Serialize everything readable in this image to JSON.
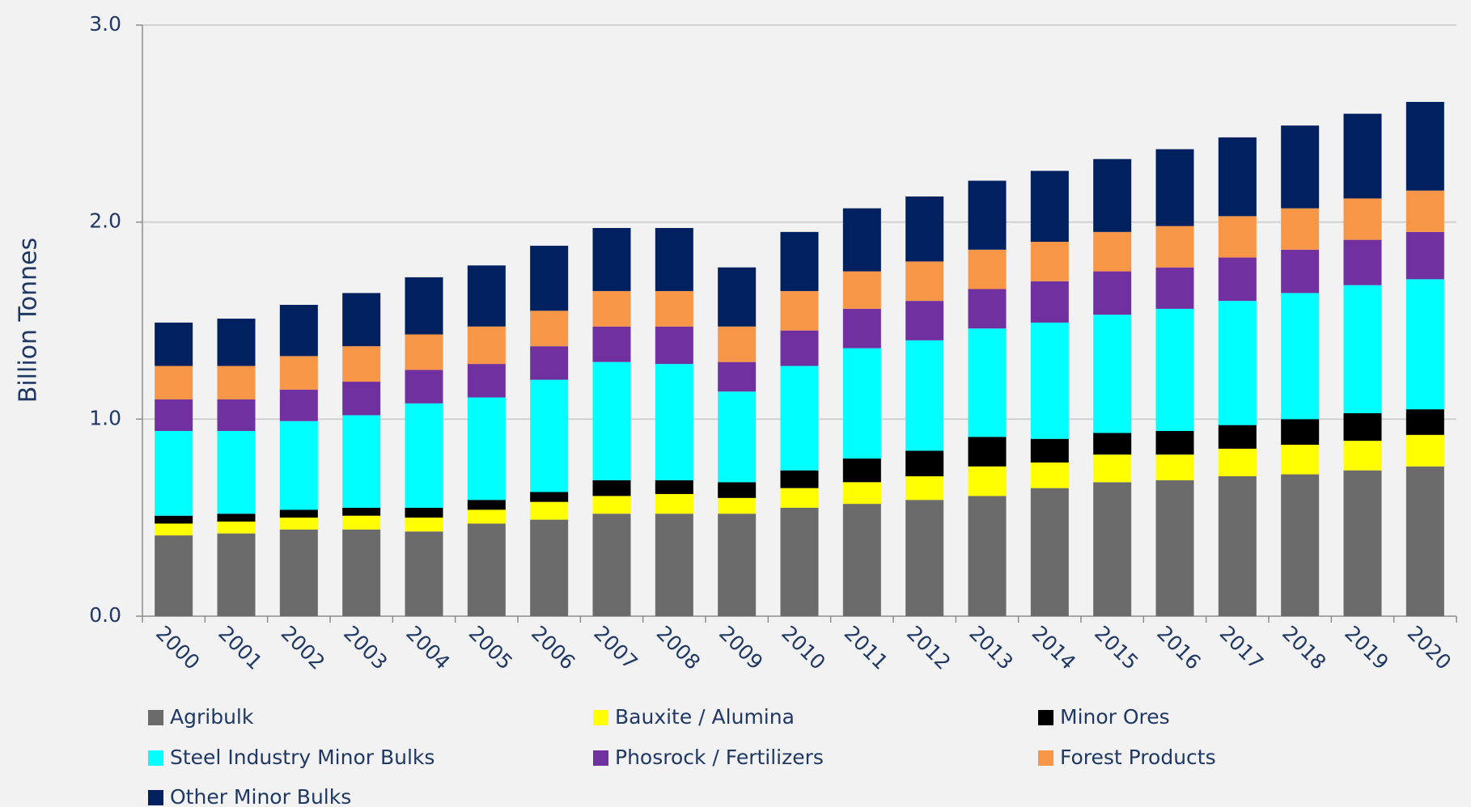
{
  "chart_data": {
    "type": "stacked_bar",
    "y_label": "Billion Tonnes",
    "categories": [
      "2000",
      "2001",
      "2002",
      "2003",
      "2004",
      "2005",
      "2006",
      "2007",
      "2008",
      "2009",
      "2010",
      "2011",
      "2012",
      "2013",
      "2014",
      "2015",
      "2016",
      "2017",
      "2018",
      "2019",
      "2020"
    ],
    "series": [
      {
        "name": "Agribulk",
        "color": "#6b6b6b",
        "values": [
          0.41,
          0.42,
          0.44,
          0.44,
          0.43,
          0.47,
          0.49,
          0.52,
          0.52,
          0.52,
          0.55,
          0.57,
          0.59,
          0.61,
          0.65,
          0.68,
          0.69,
          0.71,
          0.72,
          0.74,
          0.76
        ]
      },
      {
        "name": "Bauxite / Alumina",
        "color": "#ffff00",
        "values": [
          0.06,
          0.06,
          0.06,
          0.07,
          0.07,
          0.07,
          0.09,
          0.09,
          0.1,
          0.08,
          0.1,
          0.11,
          0.12,
          0.15,
          0.13,
          0.14,
          0.13,
          0.14,
          0.15,
          0.15,
          0.16
        ]
      },
      {
        "name": "Minor Ores",
        "color": "#000000",
        "values": [
          0.04,
          0.04,
          0.04,
          0.04,
          0.05,
          0.05,
          0.05,
          0.08,
          0.07,
          0.08,
          0.09,
          0.12,
          0.13,
          0.15,
          0.12,
          0.11,
          0.12,
          0.12,
          0.13,
          0.14,
          0.13
        ]
      },
      {
        "name": "Steel Industry Minor Bulks",
        "color": "#00ffff",
        "values": [
          0.43,
          0.42,
          0.45,
          0.47,
          0.53,
          0.52,
          0.57,
          0.6,
          0.59,
          0.46,
          0.53,
          0.56,
          0.56,
          0.55,
          0.59,
          0.6,
          0.62,
          0.63,
          0.64,
          0.65,
          0.66
        ]
      },
      {
        "name": "Phosrock / Fertilizers",
        "color": "#7030a0",
        "values": [
          0.16,
          0.16,
          0.16,
          0.17,
          0.17,
          0.17,
          0.17,
          0.18,
          0.19,
          0.15,
          0.18,
          0.2,
          0.2,
          0.2,
          0.21,
          0.22,
          0.21,
          0.22,
          0.22,
          0.23,
          0.24
        ]
      },
      {
        "name": "Forest Products",
        "color": "#f79646",
        "values": [
          0.17,
          0.17,
          0.17,
          0.18,
          0.18,
          0.19,
          0.18,
          0.18,
          0.18,
          0.18,
          0.2,
          0.19,
          0.2,
          0.2,
          0.2,
          0.2,
          0.21,
          0.21,
          0.21,
          0.21,
          0.21
        ]
      },
      {
        "name": "Other Minor Bulks",
        "color": "#002060",
        "values": [
          0.22,
          0.24,
          0.26,
          0.27,
          0.29,
          0.31,
          0.33,
          0.32,
          0.32,
          0.3,
          0.3,
          0.32,
          0.33,
          0.35,
          0.36,
          0.37,
          0.39,
          0.4,
          0.42,
          0.43,
          0.45
        ]
      }
    ],
    "ylim": [
      0,
      3
    ],
    "yticks": [
      {
        "value": 0,
        "label": "0.0"
      },
      {
        "value": 1,
        "label": "1.0"
      },
      {
        "value": 2,
        "label": "2.0"
      },
      {
        "value": 3,
        "label": "3.0"
      }
    ],
    "grid": true
  }
}
